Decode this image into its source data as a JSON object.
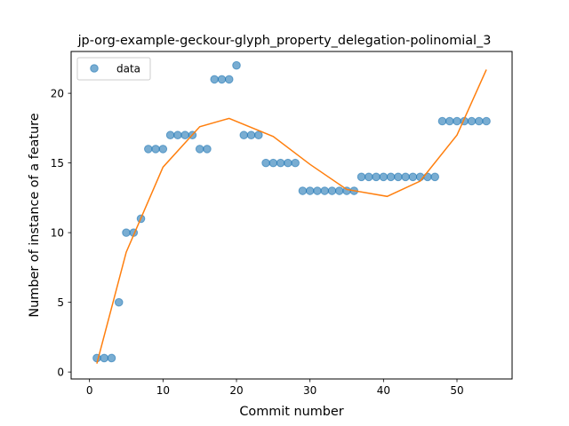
{
  "chart_data": {
    "type": "scatter",
    "title": "jp-org-example-geckour-glyph_property_delegation-polinomial_3",
    "xlabel": "Commit number",
    "ylabel": "Number of instance of a feature",
    "xlim": [
      -2.5,
      57.5
    ],
    "ylim": [
      -0.5,
      23.0
    ],
    "xticks": [
      0,
      10,
      20,
      30,
      40,
      50
    ],
    "yticks": [
      0,
      5,
      10,
      15,
      20
    ],
    "grid": false,
    "legend_position": "upper-left",
    "legend": [
      {
        "label": "data",
        "marker": "circle",
        "color": "#1f77b4"
      }
    ],
    "series": [
      {
        "name": "data",
        "kind": "scatter",
        "color": "#1f77b4",
        "alpha": 0.6,
        "x": [
          1,
          2,
          3,
          4,
          5,
          6,
          7,
          8,
          9,
          10,
          11,
          12,
          13,
          14,
          15,
          16,
          17,
          18,
          19,
          20,
          21,
          22,
          23,
          24,
          25,
          26,
          27,
          28,
          29,
          30,
          31,
          32,
          33,
          34,
          35,
          36,
          37,
          38,
          39,
          40,
          41,
          42,
          43,
          44,
          45,
          46,
          47,
          48,
          49,
          50,
          51,
          52,
          53,
          54
        ],
        "y": [
          1,
          1,
          1,
          5,
          10,
          10,
          11,
          16,
          16,
          16,
          17,
          17,
          17,
          17,
          16,
          16,
          21,
          21,
          21,
          22,
          17,
          17,
          17,
          15,
          15,
          15,
          15,
          15,
          13,
          13,
          13,
          13,
          13,
          13,
          13,
          13,
          14,
          14,
          14,
          14,
          14,
          14,
          14,
          14,
          14,
          14,
          14,
          18,
          18,
          18,
          18,
          18,
          18,
          18
        ]
      },
      {
        "kind": "line",
        "color": "#ff7f0e",
        "fit": "cubic polynomial",
        "x": [
          1,
          5,
          10,
          15,
          19,
          25,
          30,
          35,
          40.5,
          45,
          50,
          54
        ],
        "y": [
          0.6,
          8.6,
          14.7,
          17.6,
          18.2,
          16.9,
          14.9,
          13.1,
          12.6,
          13.7,
          17.0,
          21.7
        ]
      }
    ]
  }
}
